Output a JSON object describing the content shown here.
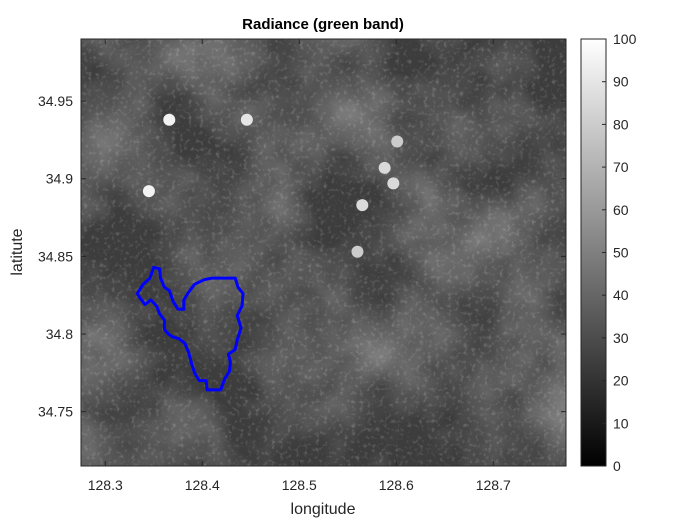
{
  "chart_data": {
    "type": "heatmap",
    "title": "Radiance (green band)",
    "xlabel": "longitude",
    "ylabel": "latitute",
    "xlim": [
      128.275,
      128.775
    ],
    "ylim": [
      34.715,
      34.99
    ],
    "xticks": [
      128.3,
      128.4,
      128.5,
      128.6,
      128.7
    ],
    "xtick_labels": [
      "128.3",
      "128.4",
      "128.5",
      "128.6",
      "128.7"
    ],
    "yticks": [
      34.75,
      34.8,
      34.85,
      34.9,
      34.95
    ],
    "ytick_labels": [
      "34.75",
      "34.8",
      "34.85",
      "34.9",
      "34.95"
    ],
    "colorbar": {
      "colormap": "gray",
      "range": [
        0,
        100
      ],
      "ticks": [
        0,
        10,
        20,
        30,
        40,
        50,
        60,
        70,
        80,
        90,
        100
      ],
      "tick_labels": [
        "0",
        "10",
        "20",
        "30",
        "40",
        "50",
        "60",
        "70",
        "80",
        "90",
        "100"
      ]
    },
    "outline": {
      "color": "#0000ff",
      "lonlat": [
        [
          128.333,
          34.826
        ],
        [
          128.339,
          34.832
        ],
        [
          128.346,
          34.836
        ],
        [
          128.35,
          34.843
        ],
        [
          128.356,
          34.842
        ],
        [
          128.357,
          34.836
        ],
        [
          128.361,
          34.83
        ],
        [
          128.366,
          34.828
        ],
        [
          128.37,
          34.821
        ],
        [
          128.375,
          34.816
        ],
        [
          128.381,
          34.816
        ],
        [
          128.381,
          34.822
        ],
        [
          128.386,
          34.827
        ],
        [
          128.392,
          34.832
        ],
        [
          128.402,
          34.835
        ],
        [
          128.41,
          34.836
        ],
        [
          128.422,
          34.836
        ],
        [
          128.434,
          34.836
        ],
        [
          128.437,
          34.83
        ],
        [
          128.442,
          34.826
        ],
        [
          128.441,
          34.818
        ],
        [
          128.436,
          34.812
        ],
        [
          128.44,
          34.804
        ],
        [
          128.436,
          34.796
        ],
        [
          128.434,
          34.79
        ],
        [
          128.427,
          34.787
        ],
        [
          128.429,
          34.782
        ],
        [
          128.428,
          34.776
        ],
        [
          128.423,
          34.771
        ],
        [
          128.419,
          34.764
        ],
        [
          128.412,
          34.764
        ],
        [
          128.405,
          34.764
        ],
        [
          128.404,
          34.77
        ],
        [
          128.397,
          34.77
        ],
        [
          128.392,
          34.775
        ],
        [
          128.389,
          34.781
        ],
        [
          128.386,
          34.788
        ],
        [
          128.382,
          34.794
        ],
        [
          128.376,
          34.797
        ],
        [
          128.37,
          34.798
        ],
        [
          128.365,
          34.8
        ],
        [
          128.361,
          34.803
        ],
        [
          128.361,
          34.809
        ],
        [
          128.356,
          34.813
        ],
        [
          128.353,
          34.818
        ],
        [
          128.347,
          34.822
        ],
        [
          128.341,
          34.819
        ],
        [
          128.336,
          34.823
        ],
        [
          128.333,
          34.826
        ]
      ]
    },
    "bright_features": [
      {
        "lon": 128.366,
        "lat": 34.938,
        "value": 95
      },
      {
        "lon": 128.345,
        "lat": 34.892,
        "value": 95
      },
      {
        "lon": 128.446,
        "lat": 34.938,
        "value": 90
      },
      {
        "lon": 128.588,
        "lat": 34.907,
        "value": 85
      },
      {
        "lon": 128.597,
        "lat": 34.897,
        "value": 85
      },
      {
        "lon": 128.565,
        "lat": 34.883,
        "value": 85
      },
      {
        "lon": 128.601,
        "lat": 34.924,
        "value": 80
      },
      {
        "lon": 128.56,
        "lat": 34.853,
        "value": 80
      }
    ]
  }
}
